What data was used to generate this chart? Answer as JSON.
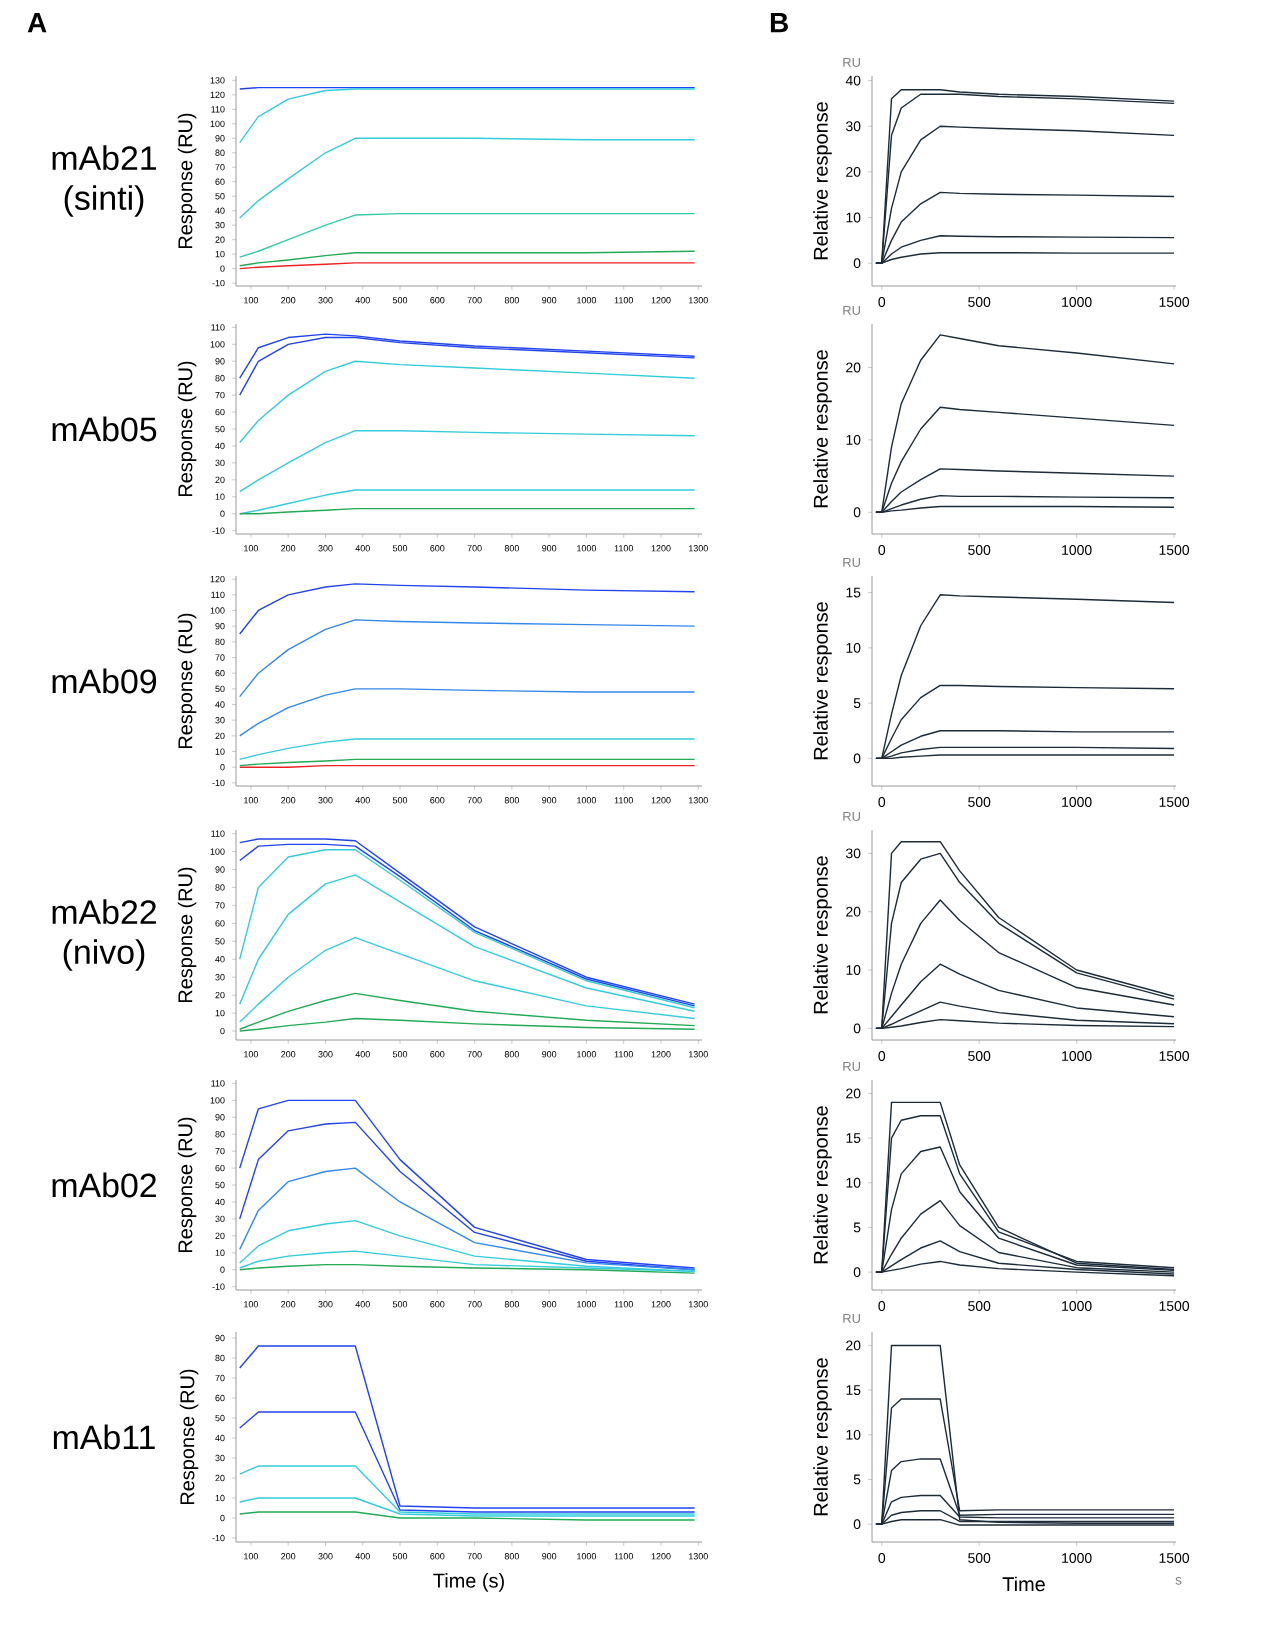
{
  "chart_data": [
    {
      "type": "line",
      "title": "mAb21 (sinti)",
      "subtitle": "A",
      "ylabel": "Response (RU)",
      "marker": "none",
      "x": [
        70,
        120,
        200,
        300,
        380,
        500,
        700,
        1000,
        1290
      ],
      "xlim": [
        60,
        1310
      ],
      "xticks": [
        100,
        200,
        300,
        400,
        500,
        600,
        700,
        800,
        900,
        1000,
        1100,
        1200,
        1300
      ],
      "ylim": [
        -12,
        133
      ],
      "yticks": [
        -10,
        0,
        10,
        20,
        30,
        40,
        50,
        60,
        70,
        80,
        90,
        100,
        110,
        120,
        130
      ],
      "series": [
        {
          "color": "#2244ee",
          "values": [
            124,
            125,
            125,
            125,
            125,
            125,
            125,
            125,
            125
          ]
        },
        {
          "color": "#33ccdd",
          "values": [
            87,
            105,
            117,
            123,
            124,
            124,
            124,
            124,
            124
          ]
        },
        {
          "color": "#33ccdd",
          "values": [
            35,
            47,
            62,
            80,
            90,
            90,
            90,
            89,
            89
          ]
        },
        {
          "color": "#33ccaa",
          "values": [
            8,
            12,
            20,
            30,
            37,
            38,
            38,
            38,
            38
          ]
        },
        {
          "color": "#22aa55",
          "values": [
            2,
            4,
            6,
            9,
            11,
            11,
            11,
            11,
            12
          ]
        },
        {
          "color": "#ee2222",
          "values": [
            0,
            1,
            2,
            3,
            4,
            4,
            4,
            4,
            4
          ]
        }
      ]
    },
    {
      "type": "line",
      "subtitle": "B",
      "ylabel": "Relative response",
      "annotations": [
        "RU"
      ],
      "marker": "none",
      "x": [
        -30,
        0,
        50,
        100,
        200,
        300,
        400,
        600,
        1000,
        1500
      ],
      "xlim": [
        -50,
        1510
      ],
      "xticks": [
        0,
        500,
        1000,
        1500
      ],
      "ylim": [
        -5,
        41
      ],
      "yticks": [
        0,
        10,
        20,
        30,
        40
      ],
      "series": [
        {
          "color": "#1c2b3a",
          "values": [
            0,
            0,
            36,
            38,
            38,
            38,
            37.5,
            37,
            36.5,
            35.5
          ]
        },
        {
          "color": "#1c2b3a",
          "values": [
            0,
            0,
            28,
            34,
            37,
            37,
            37,
            36.5,
            36,
            35
          ]
        },
        {
          "color": "#1c2b3a",
          "values": [
            0,
            0,
            12,
            20,
            27,
            30,
            29.8,
            29.5,
            29,
            28
          ]
        },
        {
          "color": "#1c2b3a",
          "values": [
            0,
            0,
            5,
            9,
            13,
            15.5,
            15.3,
            15.1,
            14.9,
            14.6
          ]
        },
        {
          "color": "#1c2b3a",
          "values": [
            0,
            0,
            2,
            3.5,
            5,
            6,
            5.9,
            5.8,
            5.7,
            5.6
          ]
        },
        {
          "color": "#1c2b3a",
          "values": [
            0,
            0,
            0.8,
            1.3,
            2,
            2.3,
            2.3,
            2.3,
            2.2,
            2.2
          ]
        }
      ]
    },
    {
      "type": "line",
      "title": "mAb05",
      "ylabel": "Response (RU)",
      "marker": "none",
      "x": [
        70,
        120,
        200,
        300,
        380,
        500,
        700,
        1000,
        1290
      ],
      "xlim": [
        60,
        1310
      ],
      "xticks": [
        100,
        200,
        300,
        400,
        500,
        600,
        700,
        800,
        900,
        1000,
        1100,
        1200,
        1300
      ],
      "ylim": [
        -12,
        112
      ],
      "yticks": [
        -10,
        0,
        10,
        20,
        30,
        40,
        50,
        60,
        70,
        80,
        90,
        100,
        110
      ],
      "series": [
        {
          "color": "#2244ee",
          "values": [
            80,
            98,
            104,
            106,
            105,
            102,
            99,
            96,
            93
          ]
        },
        {
          "color": "#2244ee",
          "values": [
            70,
            90,
            100,
            104,
            104,
            101,
            98,
            95,
            92
          ]
        },
        {
          "color": "#33ccdd",
          "values": [
            42,
            55,
            70,
            84,
            90,
            88,
            86,
            83,
            80
          ]
        },
        {
          "color": "#33ccdd",
          "values": [
            13,
            20,
            30,
            42,
            49,
            49,
            48,
            47,
            46
          ]
        },
        {
          "color": "#33ccdd",
          "values": [
            0,
            2,
            6,
            11,
            14,
            14,
            14,
            14,
            14
          ]
        },
        {
          "color": "#22aa55",
          "values": [
            0,
            0,
            1,
            2,
            3,
            3,
            3,
            3,
            3
          ]
        }
      ]
    },
    {
      "type": "line",
      "ylabel": "Relative response",
      "annotations": [
        "RU"
      ],
      "marker": "none",
      "x": [
        -30,
        0,
        50,
        100,
        200,
        300,
        400,
        600,
        1000,
        1500
      ],
      "xlim": [
        -50,
        1510
      ],
      "xticks": [
        0,
        500,
        1000,
        1500
      ],
      "ylim": [
        -3,
        26
      ],
      "yticks": [
        0,
        10,
        20
      ],
      "series": [
        {
          "color": "#1c2b3a",
          "values": [
            0,
            0,
            9,
            15,
            21,
            24.5,
            24,
            23,
            22,
            20.5
          ]
        },
        {
          "color": "#1c2b3a",
          "values": [
            0,
            0,
            4,
            7,
            11.5,
            14.5,
            14.2,
            13.8,
            13,
            12
          ]
        },
        {
          "color": "#1c2b3a",
          "values": [
            0,
            0,
            1.5,
            2.8,
            4.5,
            6,
            5.9,
            5.7,
            5.4,
            5
          ]
        },
        {
          "color": "#1c2b3a",
          "values": [
            0,
            0,
            0.5,
            1,
            1.8,
            2.3,
            2.2,
            2.2,
            2.1,
            2
          ]
        },
        {
          "color": "#1c2b3a",
          "values": [
            0,
            0,
            0.2,
            0.3,
            0.6,
            0.8,
            0.8,
            0.8,
            0.8,
            0.7
          ]
        }
      ]
    },
    {
      "type": "line",
      "title": "mAb09",
      "ylabel": "Response (RU)",
      "marker": "none",
      "x": [
        70,
        120,
        200,
        300,
        380,
        500,
        700,
        1000,
        1290
      ],
      "xlim": [
        60,
        1310
      ],
      "xticks": [
        100,
        200,
        300,
        400,
        500,
        600,
        700,
        800,
        900,
        1000,
        1100,
        1200,
        1300
      ],
      "ylim": [
        -12,
        122
      ],
      "yticks": [
        -10,
        0,
        10,
        20,
        30,
        40,
        50,
        60,
        70,
        80,
        90,
        100,
        110,
        120
      ],
      "series": [
        {
          "color": "#2244ee",
          "values": [
            85,
            100,
            110,
            115,
            117,
            116,
            115,
            113,
            112
          ]
        },
        {
          "color": "#3388ee",
          "values": [
            45,
            60,
            75,
            88,
            94,
            93,
            92,
            91,
            90
          ]
        },
        {
          "color": "#3388ee",
          "values": [
            20,
            28,
            38,
            46,
            50,
            50,
            49,
            48,
            48
          ]
        },
        {
          "color": "#33ccdd",
          "values": [
            5,
            8,
            12,
            16,
            18,
            18,
            18,
            18,
            18
          ]
        },
        {
          "color": "#22aa55",
          "values": [
            1,
            2,
            3,
            4,
            5,
            5,
            5,
            5,
            5
          ]
        },
        {
          "color": "#ee2222",
          "values": [
            0,
            0,
            0,
            1,
            1,
            1,
            1,
            1,
            1
          ]
        }
      ]
    },
    {
      "type": "line",
      "ylabel": "Relative response",
      "annotations": [
        "RU"
      ],
      "marker": "none",
      "x": [
        -30,
        0,
        50,
        100,
        200,
        300,
        400,
        600,
        1000,
        1500
      ],
      "xlim": [
        -50,
        1510
      ],
      "xticks": [
        0,
        500,
        1000,
        1500
      ],
      "ylim": [
        -2.5,
        16.5
      ],
      "yticks": [
        0,
        5,
        10,
        15
      ],
      "series": [
        {
          "color": "#1c2b3a",
          "values": [
            0,
            0,
            4,
            7.5,
            12,
            14.8,
            14.7,
            14.6,
            14.4,
            14.1
          ]
        },
        {
          "color": "#1c2b3a",
          "values": [
            0,
            0,
            1.8,
            3.5,
            5.5,
            6.6,
            6.6,
            6.5,
            6.4,
            6.3
          ]
        },
        {
          "color": "#1c2b3a",
          "values": [
            0,
            0,
            0.6,
            1.2,
            2,
            2.5,
            2.5,
            2.5,
            2.4,
            2.4
          ]
        },
        {
          "color": "#1c2b3a",
          "values": [
            0,
            0,
            0.2,
            0.5,
            0.8,
            1,
            1,
            1,
            1,
            0.9
          ]
        },
        {
          "color": "#1c2b3a",
          "values": [
            0,
            0,
            0,
            0.1,
            0.2,
            0.3,
            0.3,
            0.3,
            0.3,
            0.3
          ]
        }
      ]
    },
    {
      "type": "line",
      "title": "mAb22 (nivo)",
      "ylabel": "Response (RU)",
      "marker": "none",
      "x": [
        70,
        120,
        200,
        300,
        380,
        500,
        700,
        1000,
        1290
      ],
      "xlim": [
        60,
        1310
      ],
      "xticks": [
        100,
        200,
        300,
        400,
        500,
        600,
        700,
        800,
        900,
        1000,
        1100,
        1200,
        1300
      ],
      "ylim": [
        -5,
        112
      ],
      "yticks": [
        0,
        10,
        20,
        30,
        40,
        50,
        60,
        70,
        80,
        90,
        100,
        110
      ],
      "series": [
        {
          "color": "#2244ee",
          "values": [
            105,
            107,
            107,
            107,
            106,
            88,
            58,
            30,
            15
          ]
        },
        {
          "color": "#2244ee",
          "values": [
            95,
            103,
            104,
            104,
            103,
            86,
            56,
            29,
            14
          ]
        },
        {
          "color": "#33ccdd",
          "values": [
            40,
            80,
            97,
            101,
            101,
            84,
            55,
            28,
            13
          ]
        },
        {
          "color": "#33ccdd",
          "values": [
            15,
            40,
            65,
            82,
            87,
            72,
            47,
            24,
            11
          ]
        },
        {
          "color": "#33ccdd",
          "values": [
            5,
            15,
            30,
            45,
            52,
            43,
            28,
            14,
            7
          ]
        },
        {
          "color": "#22aa55",
          "values": [
            1,
            5,
            11,
            17,
            21,
            17,
            11,
            6,
            3
          ]
        },
        {
          "color": "#22aa55",
          "values": [
            0,
            1,
            3,
            5,
            7,
            6,
            4,
            2,
            1
          ]
        }
      ]
    },
    {
      "type": "line",
      "ylabel": "Relative response",
      "annotations": [
        "RU"
      ],
      "marker": "none",
      "x": [
        -30,
        0,
        50,
        100,
        200,
        300,
        400,
        600,
        1000,
        1500
      ],
      "xlim": [
        -50,
        1510
      ],
      "xticks": [
        0,
        500,
        1000,
        1500
      ],
      "ylim": [
        -2,
        34
      ],
      "yticks": [
        0,
        10,
        20,
        30
      ],
      "series": [
        {
          "color": "#1c2b3a",
          "values": [
            0,
            0,
            30,
            32,
            32,
            32,
            27,
            19,
            10,
            5.5
          ]
        },
        {
          "color": "#1c2b3a",
          "values": [
            0,
            0,
            18,
            25,
            29,
            30,
            25,
            18,
            9.5,
            5
          ]
        },
        {
          "color": "#1c2b3a",
          "values": [
            0,
            0,
            6,
            11,
            18,
            22,
            18.5,
            13,
            7,
            4
          ]
        },
        {
          "color": "#1c2b3a",
          "values": [
            0,
            0,
            2,
            4,
            8,
            11,
            9.3,
            6.5,
            3.5,
            2
          ]
        },
        {
          "color": "#1c2b3a",
          "values": [
            0,
            0,
            0.7,
            1.5,
            3,
            4.5,
            3.8,
            2.7,
            1.4,
            0.8
          ]
        },
        {
          "color": "#1c2b3a",
          "values": [
            0,
            0,
            0.2,
            0.4,
            1,
            1.5,
            1.3,
            0.9,
            0.5,
            0.3
          ]
        }
      ]
    },
    {
      "type": "line",
      "title": "mAb02",
      "ylabel": "Response (RU)",
      "marker": "none",
      "x": [
        70,
        120,
        200,
        300,
        380,
        500,
        700,
        1000,
        1290
      ],
      "xlim": [
        60,
        1310
      ],
      "xticks": [
        100,
        200,
        300,
        400,
        500,
        600,
        700,
        800,
        900,
        1000,
        1100,
        1200,
        1300
      ],
      "ylim": [
        -12,
        112
      ],
      "yticks": [
        -10,
        0,
        10,
        20,
        30,
        40,
        50,
        60,
        70,
        80,
        90,
        100,
        110
      ],
      "series": [
        {
          "color": "#2244ee",
          "values": [
            60,
            95,
            100,
            100,
            100,
            65,
            25,
            6,
            1
          ]
        },
        {
          "color": "#2244ee",
          "values": [
            30,
            65,
            82,
            86,
            87,
            58,
            22,
            5,
            0
          ]
        },
        {
          "color": "#3388ee",
          "values": [
            12,
            35,
            52,
            58,
            60,
            40,
            16,
            4,
            0
          ]
        },
        {
          "color": "#33ccdd",
          "values": [
            4,
            14,
            23,
            27,
            29,
            20,
            8,
            2,
            -1
          ]
        },
        {
          "color": "#33ccdd",
          "values": [
            1,
            5,
            8,
            10,
            11,
            8,
            3,
            1,
            -1
          ]
        },
        {
          "color": "#22aa55",
          "values": [
            0,
            1,
            2,
            3,
            3,
            2,
            1,
            0,
            -2
          ]
        }
      ]
    },
    {
      "type": "line",
      "ylabel": "Relative response",
      "annotations": [
        "RU"
      ],
      "marker": "none",
      "x": [
        -30,
        0,
        50,
        100,
        200,
        300,
        400,
        600,
        1000,
        1500
      ],
      "xlim": [
        -50,
        1510
      ],
      "xticks": [
        0,
        500,
        1000,
        1500
      ],
      "ylim": [
        -2,
        21.5
      ],
      "yticks": [
        0,
        5,
        10,
        15,
        20
      ],
      "series": [
        {
          "color": "#1c2b3a",
          "values": [
            0,
            0,
            19,
            19,
            19,
            19,
            12,
            5,
            1,
            0.3
          ]
        },
        {
          "color": "#1c2b3a",
          "values": [
            0,
            0,
            15,
            17,
            17.5,
            17.5,
            11,
            4.5,
            1.2,
            0.5
          ]
        },
        {
          "color": "#1c2b3a",
          "values": [
            0,
            0,
            7,
            11,
            13.5,
            14,
            9,
            3.8,
            0.8,
            0.2
          ]
        },
        {
          "color": "#1c2b3a",
          "values": [
            0,
            0,
            2,
            3.8,
            6.5,
            8,
            5.2,
            2.2,
            0.5,
            0
          ]
        },
        {
          "color": "#1c2b3a",
          "values": [
            0,
            0,
            0.7,
            1.4,
            2.7,
            3.5,
            2.3,
            1,
            0.3,
            -0.2
          ]
        },
        {
          "color": "#1c2b3a",
          "values": [
            0,
            0,
            0.2,
            0.4,
            0.9,
            1.2,
            0.8,
            0.4,
            0,
            -0.4
          ]
        }
      ]
    },
    {
      "type": "line",
      "title": "mAb11",
      "ylabel": "Response (RU)",
      "xlabel": "Time (s)",
      "marker": "none",
      "x": [
        70,
        120,
        200,
        300,
        380,
        500,
        700,
        1000,
        1290
      ],
      "xlim": [
        60,
        1310
      ],
      "xticks": [
        100,
        200,
        300,
        400,
        500,
        600,
        700,
        800,
        900,
        1000,
        1100,
        1200,
        1300
      ],
      "ylim": [
        -12,
        93
      ],
      "yticks": [
        -10,
        0,
        10,
        20,
        30,
        40,
        50,
        60,
        70,
        80,
        90
      ],
      "series": [
        {
          "color": "#2244ee",
          "values": [
            75,
            86,
            86,
            86,
            86,
            6,
            5,
            5,
            5
          ]
        },
        {
          "color": "#2244ee",
          "values": [
            45,
            53,
            53,
            53,
            53,
            4,
            3,
            3,
            3
          ]
        },
        {
          "color": "#33ccdd",
          "values": [
            22,
            26,
            26,
            26,
            26,
            3,
            2,
            2,
            2
          ]
        },
        {
          "color": "#33ccdd",
          "values": [
            8,
            10,
            10,
            10,
            10,
            2,
            1,
            1,
            1
          ]
        },
        {
          "color": "#22aa55",
          "values": [
            2,
            3,
            3,
            3,
            3,
            0,
            0,
            -1,
            -1
          ]
        }
      ]
    },
    {
      "type": "line",
      "ylabel": "Relative response",
      "xlabel": "Time",
      "annotations": [
        "RU",
        "s"
      ],
      "marker": "none",
      "x": [
        -30,
        0,
        50,
        100,
        200,
        300,
        400,
        600,
        1000,
        1500
      ],
      "xlim": [
        -50,
        1510
      ],
      "xticks": [
        0,
        500,
        1000,
        1500
      ],
      "ylim": [
        -2,
        21.5
      ],
      "yticks": [
        0,
        5,
        10,
        15,
        20
      ],
      "series": [
        {
          "color": "#1c2b3a",
          "values": [
            0,
            0,
            20,
            20,
            20,
            20,
            0.5,
            0.2,
            0.1,
            0.1
          ]
        },
        {
          "color": "#1c2b3a",
          "values": [
            0,
            0,
            13,
            14,
            14,
            14,
            1.5,
            1.6,
            1.6,
            1.6
          ]
        },
        {
          "color": "#1c2b3a",
          "values": [
            0,
            0,
            6,
            7,
            7.3,
            7.3,
            1,
            1.1,
            1.1,
            1.1
          ]
        },
        {
          "color": "#1c2b3a",
          "values": [
            0,
            0,
            2.5,
            3,
            3.2,
            3.2,
            0.8,
            0.7,
            0.7,
            0.7
          ]
        },
        {
          "color": "#1c2b3a",
          "values": [
            0,
            0,
            1,
            1.3,
            1.5,
            1.5,
            0.3,
            0.3,
            0.3,
            0.3
          ]
        },
        {
          "color": "#1c2b3a",
          "values": [
            0,
            0,
            0.3,
            0.5,
            0.5,
            0.5,
            -0.1,
            -0.1,
            -0.1,
            -0.1
          ]
        }
      ]
    }
  ]
}
